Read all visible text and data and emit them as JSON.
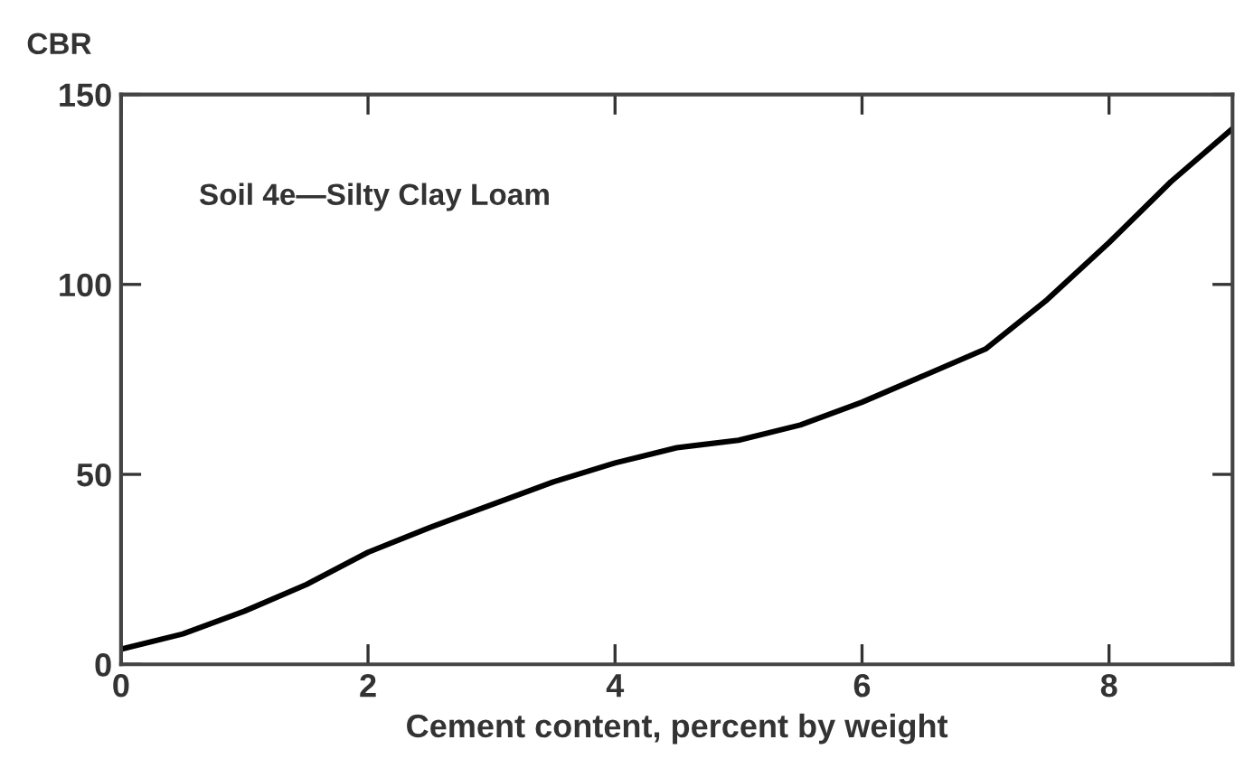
{
  "chart_data": {
    "type": "line",
    "ylabel": "CBR",
    "xlabel": "Cement content, percent by weight",
    "annotations": [
      "Soil 4e—Silty Clay Loam"
    ],
    "x": [
      0,
      0.5,
      1,
      1.5,
      2,
      2.5,
      3,
      3.5,
      4,
      4.5,
      5,
      5.5,
      6,
      6.5,
      7,
      7.5,
      8,
      8.5,
      9
    ],
    "series": [
      {
        "color": "#000000",
        "values": [
          4,
          8,
          14,
          21,
          29.5,
          36,
          42,
          48,
          53,
          57,
          59,
          63,
          69,
          76,
          83,
          96,
          111,
          127,
          141
        ]
      }
    ],
    "xlim": [
      0,
      9
    ],
    "ylim": [
      0,
      150
    ],
    "xticks": [
      0,
      2,
      4,
      6,
      8
    ],
    "yticks": [
      0,
      50,
      100,
      150
    ],
    "grid": false,
    "marker": "none",
    "line_style": "solid"
  }
}
